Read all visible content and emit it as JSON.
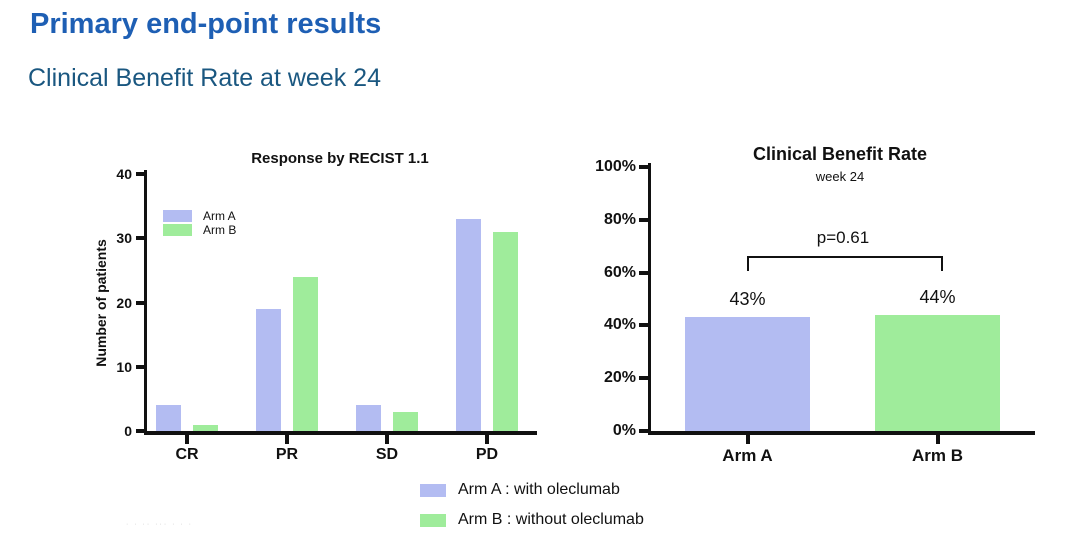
{
  "header": {
    "title": "Primary end-point results",
    "subtitle": "Clinical Benefit Rate at week 24"
  },
  "colors": {
    "title_blue": "#1E5FB4",
    "subtitle_blue": "#1A5780",
    "axis_black": "#111111",
    "arm_a": "#B3BCF2",
    "arm_b": "#9FEC9B"
  },
  "chart_data": [
    {
      "type": "bar",
      "title": "Response by RECIST 1.1",
      "xlabel": "",
      "ylabel": "Number of patients",
      "categories": [
        "CR",
        "PR",
        "SD",
        "PD"
      ],
      "series": [
        {
          "name": "Arm A",
          "color": "#B3BCF2",
          "values": [
            4,
            19,
            4,
            33
          ]
        },
        {
          "name": "Arm B",
          "color": "#9FEC9B",
          "values": [
            1,
            24,
            3,
            31
          ]
        }
      ],
      "ylim": [
        0,
        40
      ],
      "yticks": [
        0,
        10,
        20,
        30,
        40
      ],
      "grid": false,
      "legend_position": "inside-upper-left"
    },
    {
      "type": "bar",
      "title": "Clinical Benefit Rate",
      "subtitle": "week 24",
      "xlabel": "",
      "ylabel": "",
      "categories": [
        "Arm A",
        "Arm B"
      ],
      "values": [
        43,
        44
      ],
      "value_labels": [
        "43%",
        "44%"
      ],
      "colors": [
        "#B3BCF2",
        "#9FEC9B"
      ],
      "ylim": [
        0,
        100
      ],
      "yticks": [
        {
          "value": 0,
          "label": "0%"
        },
        {
          "value": 20,
          "label": "20%"
        },
        {
          "value": 40,
          "label": "40%"
        },
        {
          "value": 60,
          "label": "60%"
        },
        {
          "value": 80,
          "label": "80%"
        },
        {
          "value": 100,
          "label": "100%"
        }
      ],
      "grid": false,
      "annotation": {
        "text": "p=0.61"
      }
    }
  ],
  "legend": {
    "items": [
      {
        "label": "Arm A : with oleclumab",
        "color": "#B3BCF2"
      },
      {
        "label": "Arm B : without oleclumab",
        "color": "#9FEC9B"
      }
    ]
  },
  "footer_marks": "· · ·· ··· · · ·"
}
